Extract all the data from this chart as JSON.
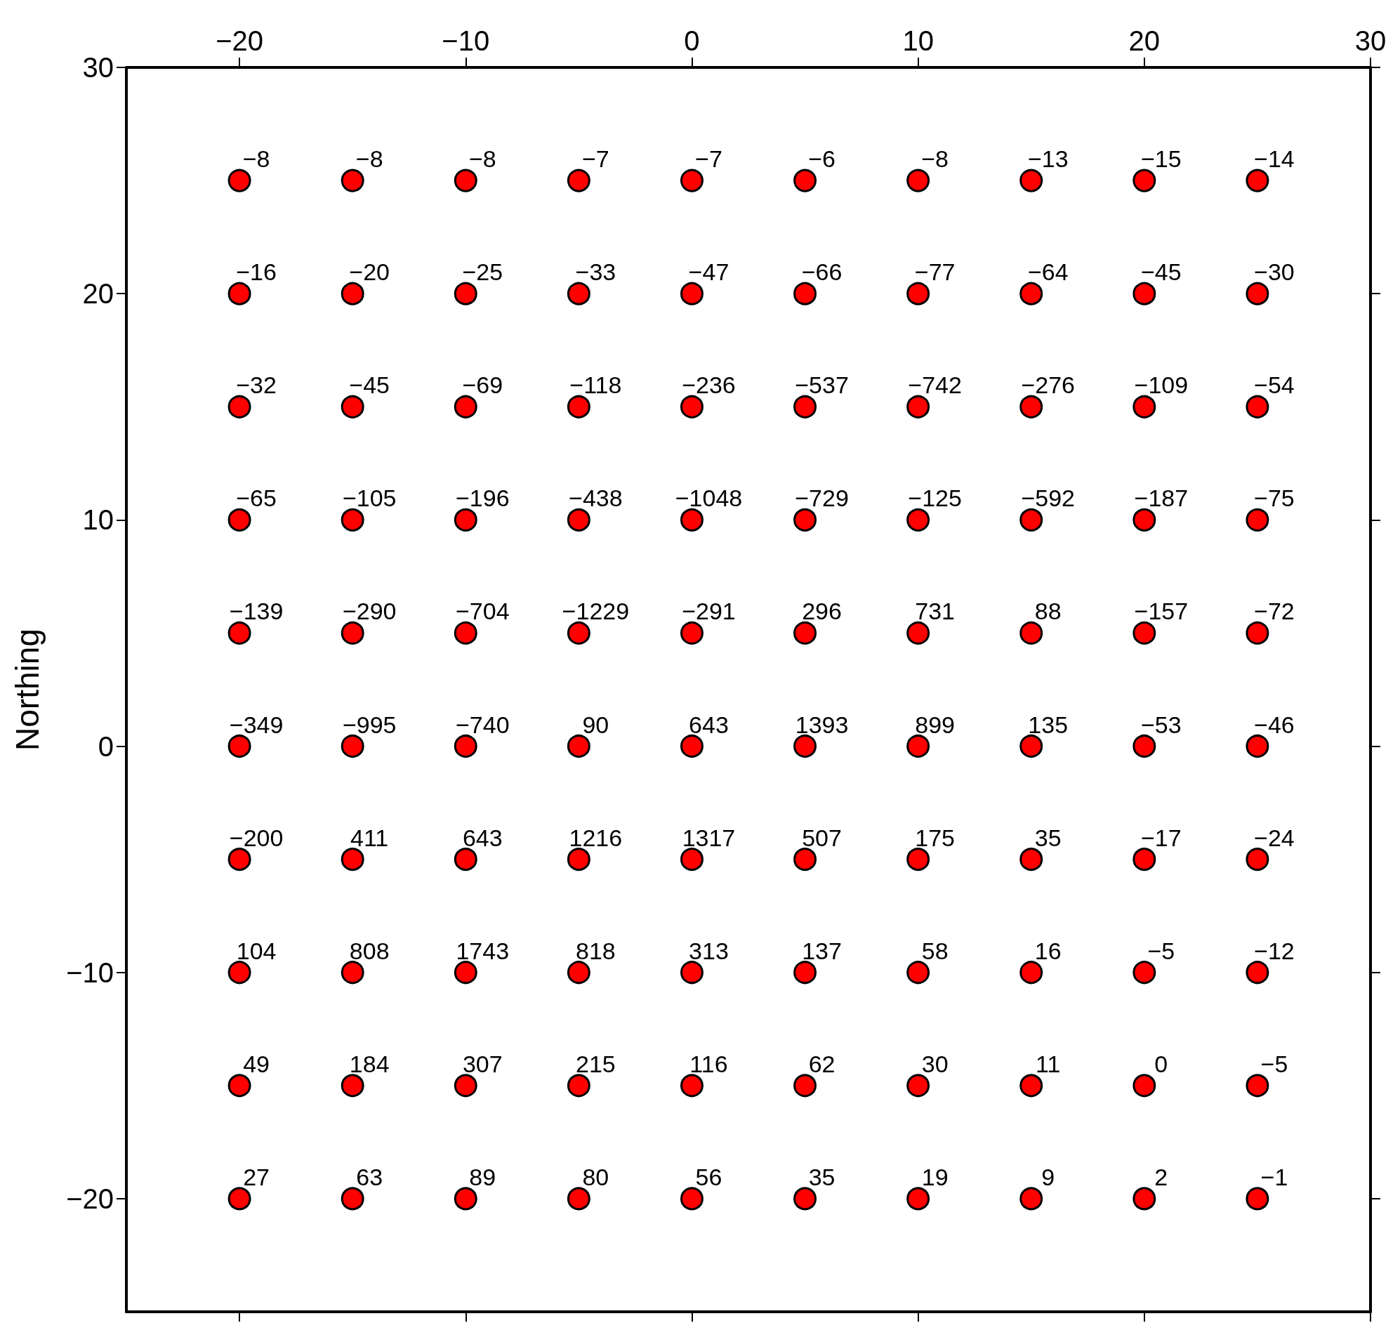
{
  "chart_data": {
    "type": "scatter",
    "ylabel": "Northing",
    "xlim": [
      -25,
      30
    ],
    "xticks": [
      {
        "value": -20,
        "label": "−20"
      },
      {
        "value": -10,
        "label": "−10"
      },
      0,
      10,
      20,
      30
    ],
    "ylim": [
      -25,
      30
    ],
    "yticks": [
      {
        "value": -20,
        "label": "−20"
      },
      {
        "value": -10,
        "label": "−10"
      },
      0,
      10,
      20,
      30
    ],
    "grid": false,
    "marker": "circle",
    "series": [
      {
        "color": "#ff0000",
        "x": [
          -20,
          -15,
          -10,
          -5,
          0,
          5,
          10,
          15,
          20,
          25,
          -20,
          -15,
          -10,
          -5,
          0,
          5,
          10,
          15,
          20,
          25,
          -20,
          -15,
          -10,
          -5,
          0,
          5,
          10,
          15,
          20,
          25,
          -20,
          -15,
          -10,
          -5,
          0,
          5,
          10,
          15,
          20,
          25,
          -20,
          -15,
          -10,
          -5,
          0,
          5,
          10,
          15,
          20,
          25,
          -20,
          -15,
          -10,
          -5,
          0,
          5,
          10,
          15,
          20,
          25,
          -20,
          -15,
          -10,
          -5,
          0,
          5,
          10,
          15,
          20,
          25,
          -20,
          -15,
          -10,
          -5,
          0,
          5,
          10,
          15,
          20,
          25,
          -20,
          -15,
          -10,
          -5,
          0,
          5,
          10,
          15,
          20,
          25,
          -20,
          -15,
          -10,
          -5,
          0,
          5,
          10,
          15,
          20,
          25
        ],
        "values": [
          25,
          25,
          25,
          25,
          25,
          25,
          25,
          25,
          25,
          25,
          20,
          20,
          20,
          20,
          20,
          20,
          20,
          20,
          20,
          20,
          15,
          15,
          15,
          15,
          15,
          15,
          15,
          15,
          15,
          15,
          10,
          10,
          10,
          10,
          10,
          10,
          10,
          10,
          10,
          10,
          5,
          5,
          5,
          5,
          5,
          5,
          5,
          5,
          5,
          5,
          0,
          0,
          0,
          0,
          0,
          0,
          0,
          0,
          0,
          0,
          -5,
          -5,
          -5,
          -5,
          -5,
          -5,
          -5,
          -5,
          -5,
          -5,
          -10,
          -10,
          -10,
          -10,
          -10,
          -10,
          -10,
          -10,
          -10,
          -10,
          -15,
          -15,
          -15,
          -15,
          -15,
          -15,
          -15,
          -15,
          -15,
          -15,
          -20,
          -20,
          -20,
          -20,
          -20,
          -20,
          -20,
          -20,
          -20,
          -20
        ]
      }
    ],
    "annotations": [
      {
        "text": "−8",
        "x": -20,
        "y": 25
      },
      {
        "text": "−8",
        "x": -15,
        "y": 25
      },
      {
        "text": "−8",
        "x": -10,
        "y": 25
      },
      {
        "text": "−7",
        "x": -5,
        "y": 25
      },
      {
        "text": "−7",
        "x": 0,
        "y": 25
      },
      {
        "text": "−6",
        "x": 5,
        "y": 25
      },
      {
        "text": "−8",
        "x": 10,
        "y": 25
      },
      {
        "text": "−13",
        "x": 15,
        "y": 25
      },
      {
        "text": "−15",
        "x": 20,
        "y": 25
      },
      {
        "text": "−14",
        "x": 25,
        "y": 25
      },
      {
        "text": "−16",
        "x": -20,
        "y": 20
      },
      {
        "text": "−20",
        "x": -15,
        "y": 20
      },
      {
        "text": "−25",
        "x": -10,
        "y": 20
      },
      {
        "text": "−33",
        "x": -5,
        "y": 20
      },
      {
        "text": "−47",
        "x": 0,
        "y": 20
      },
      {
        "text": "−66",
        "x": 5,
        "y": 20
      },
      {
        "text": "−77",
        "x": 10,
        "y": 20
      },
      {
        "text": "−64",
        "x": 15,
        "y": 20
      },
      {
        "text": "−45",
        "x": 20,
        "y": 20
      },
      {
        "text": "−30",
        "x": 25,
        "y": 20
      },
      {
        "text": "−32",
        "x": -20,
        "y": 15
      },
      {
        "text": "−45",
        "x": -15,
        "y": 15
      },
      {
        "text": "−69",
        "x": -10,
        "y": 15
      },
      {
        "text": "−118",
        "x": -5,
        "y": 15
      },
      {
        "text": "−236",
        "x": 0,
        "y": 15
      },
      {
        "text": "−537",
        "x": 5,
        "y": 15
      },
      {
        "text": "−742",
        "x": 10,
        "y": 15
      },
      {
        "text": "−276",
        "x": 15,
        "y": 15
      },
      {
        "text": "−109",
        "x": 20,
        "y": 15
      },
      {
        "text": "−54",
        "x": 25,
        "y": 15
      },
      {
        "text": "−65",
        "x": -20,
        "y": 10
      },
      {
        "text": "−105",
        "x": -15,
        "y": 10
      },
      {
        "text": "−196",
        "x": -10,
        "y": 10
      },
      {
        "text": "−438",
        "x": -5,
        "y": 10
      },
      {
        "text": "−1048",
        "x": 0,
        "y": 10
      },
      {
        "text": "−729",
        "x": 5,
        "y": 10
      },
      {
        "text": "−125",
        "x": 10,
        "y": 10
      },
      {
        "text": "−592",
        "x": 15,
        "y": 10
      },
      {
        "text": "−187",
        "x": 20,
        "y": 10
      },
      {
        "text": "−75",
        "x": 25,
        "y": 10
      },
      {
        "text": "−139",
        "x": -20,
        "y": 5
      },
      {
        "text": "−290",
        "x": -15,
        "y": 5
      },
      {
        "text": "−704",
        "x": -10,
        "y": 5
      },
      {
        "text": "−1229",
        "x": -5,
        "y": 5
      },
      {
        "text": "−291",
        "x": 0,
        "y": 5
      },
      {
        "text": "296",
        "x": 5,
        "y": 5
      },
      {
        "text": "731",
        "x": 10,
        "y": 5
      },
      {
        "text": "88",
        "x": 15,
        "y": 5
      },
      {
        "text": "−157",
        "x": 20,
        "y": 5
      },
      {
        "text": "−72",
        "x": 25,
        "y": 5
      },
      {
        "text": "−349",
        "x": -20,
        "y": 0
      },
      {
        "text": "−995",
        "x": -15,
        "y": 0
      },
      {
        "text": "−740",
        "x": -10,
        "y": 0
      },
      {
        "text": "90",
        "x": -5,
        "y": 0
      },
      {
        "text": "643",
        "x": 0,
        "y": 0
      },
      {
        "text": "1393",
        "x": 5,
        "y": 0
      },
      {
        "text": "899",
        "x": 10,
        "y": 0
      },
      {
        "text": "135",
        "x": 15,
        "y": 0
      },
      {
        "text": "−53",
        "x": 20,
        "y": 0
      },
      {
        "text": "−46",
        "x": 25,
        "y": 0
      },
      {
        "text": "−200",
        "x": -20,
        "y": -5
      },
      {
        "text": "411",
        "x": -15,
        "y": -5
      },
      {
        "text": "643",
        "x": -10,
        "y": -5
      },
      {
        "text": "1216",
        "x": -5,
        "y": -5
      },
      {
        "text": "1317",
        "x": 0,
        "y": -5
      },
      {
        "text": "507",
        "x": 5,
        "y": -5
      },
      {
        "text": "175",
        "x": 10,
        "y": -5
      },
      {
        "text": "35",
        "x": 15,
        "y": -5
      },
      {
        "text": "−17",
        "x": 20,
        "y": -5
      },
      {
        "text": "−24",
        "x": 25,
        "y": -5
      },
      {
        "text": "104",
        "x": -20,
        "y": -10
      },
      {
        "text": "808",
        "x": -15,
        "y": -10
      },
      {
        "text": "1743",
        "x": -10,
        "y": -10
      },
      {
        "text": "818",
        "x": -5,
        "y": -10
      },
      {
        "text": "313",
        "x": 0,
        "y": -10
      },
      {
        "text": "137",
        "x": 5,
        "y": -10
      },
      {
        "text": "58",
        "x": 10,
        "y": -10
      },
      {
        "text": "16",
        "x": 15,
        "y": -10
      },
      {
        "text": "−5",
        "x": 20,
        "y": -10
      },
      {
        "text": "−12",
        "x": 25,
        "y": -10
      },
      {
        "text": "49",
        "x": -20,
        "y": -15
      },
      {
        "text": "184",
        "x": -15,
        "y": -15
      },
      {
        "text": "307",
        "x": -10,
        "y": -15
      },
      {
        "text": "215",
        "x": -5,
        "y": -15
      },
      {
        "text": "116",
        "x": 0,
        "y": -15
      },
      {
        "text": "62",
        "x": 5,
        "y": -15
      },
      {
        "text": "30",
        "x": 10,
        "y": -15
      },
      {
        "text": "11",
        "x": 15,
        "y": -15
      },
      {
        "text": "0",
        "x": 20,
        "y": -15
      },
      {
        "text": "−5",
        "x": 25,
        "y": -15
      },
      {
        "text": "27",
        "x": -20,
        "y": -20
      },
      {
        "text": "63",
        "x": -15,
        "y": -20
      },
      {
        "text": "89",
        "x": -10,
        "y": -20
      },
      {
        "text": "80",
        "x": -5,
        "y": -20
      },
      {
        "text": "56",
        "x": 0,
        "y": -20
      },
      {
        "text": "35",
        "x": 5,
        "y": -20
      },
      {
        "text": "19",
        "x": 10,
        "y": -20
      },
      {
        "text": "9",
        "x": 15,
        "y": -20
      },
      {
        "text": "2",
        "x": 20,
        "y": -20
      },
      {
        "text": "−1",
        "x": 25,
        "y": -20
      }
    ]
  }
}
